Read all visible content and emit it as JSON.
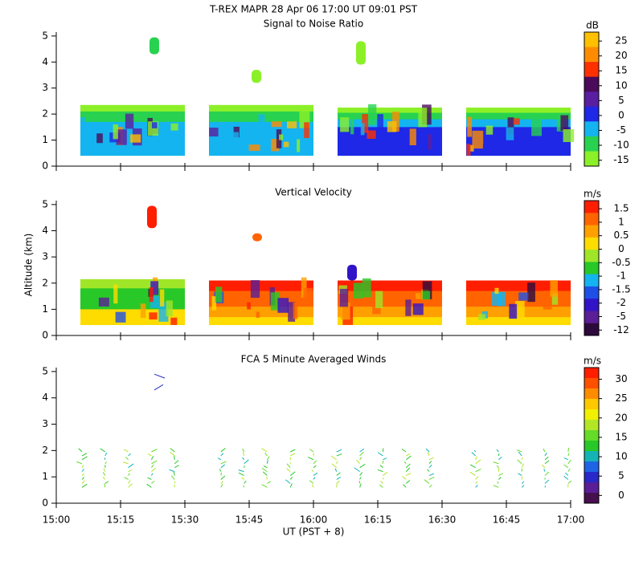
{
  "figure": {
    "title": "T-REX   MAPR 28 Apr 06   17:00 UT   09:01   PST",
    "xlabel": "UT  (PST + 8)",
    "ylabel": "Altitude (km)",
    "xticks": [
      "15:00",
      "15:15",
      "15:30",
      "15:45",
      "16:00",
      "16:15",
      "16:30",
      "16:45",
      "17:00"
    ],
    "panels": [
      {
        "type": "heatmap",
        "title": "Signal to Noise Ratio",
        "ylim": [
          0,
          5.15
        ],
        "yticks": [
          0,
          1,
          2,
          3,
          4,
          5
        ],
        "colorbar": {
          "unit": "dB",
          "ticks": [
            25,
            20,
            15,
            10,
            5,
            0,
            -5,
            -10,
            -15
          ],
          "colors": [
            "#ffc000",
            "#ff8c00",
            "#ff3000",
            "#4b0a5a",
            "#5a1ea0",
            "#1e28e6",
            "#14b4f0",
            "#28d250",
            "#8cf028"
          ]
        }
      },
      {
        "type": "heatmap",
        "title": "Vertical Velocity",
        "ylim": [
          0,
          5.15
        ],
        "yticks": [
          0,
          1,
          2,
          3,
          4,
          5
        ],
        "colorbar": {
          "unit": "m/s",
          "ticks": [
            1.5,
            1,
            0.5,
            0,
            -0.5,
            -1,
            -1.5,
            -2,
            -5,
            -12
          ],
          "colors": [
            "#ff1e00",
            "#ff6400",
            "#ffa000",
            "#ffdc00",
            "#a0e628",
            "#28c828",
            "#14b4f0",
            "#1e50e6",
            "#3214c8",
            "#5a1e96",
            "#2d0a3c"
          ]
        }
      },
      {
        "type": "barbs",
        "title": "FCA 5 Minute Averaged Winds",
        "ylim": [
          0,
          5.15
        ],
        "yticks": [
          0,
          1,
          2,
          3,
          4,
          5
        ],
        "colorbar": {
          "unit": "m/s",
          "ticks": [
            30,
            25,
            20,
            15,
            10,
            5,
            0
          ],
          "colors": [
            "#ff1e00",
            "#ff5000",
            "#ff8c00",
            "#ffc800",
            "#f0f000",
            "#b4e628",
            "#64dc28",
            "#28c828",
            "#14b4b4",
            "#1e64e6",
            "#2828c8",
            "#5a1e96",
            "#46104e"
          ]
        }
      }
    ]
  }
}
